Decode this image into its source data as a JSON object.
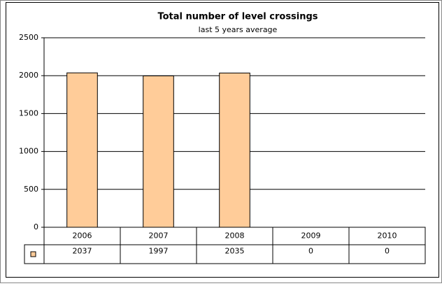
{
  "chart_data": {
    "type": "bar",
    "title": "Total number of level crossings",
    "subtitle": "last 5 years average",
    "categories": [
      "2006",
      "2007",
      "2008",
      "2009",
      "2010"
    ],
    "values": [
      2037,
      1997,
      2035,
      0,
      0
    ],
    "color": "#ffcc99",
    "ylim": [
      0,
      2500
    ],
    "yticks": [
      0,
      500,
      1000,
      1500,
      2000,
      2500
    ],
    "grid": true,
    "data_table": true
  }
}
